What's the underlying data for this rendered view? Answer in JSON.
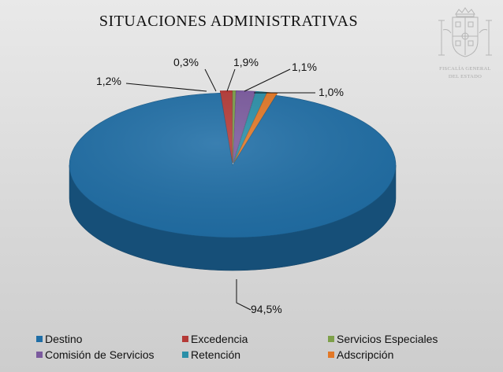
{
  "chart_data": {
    "type": "pie",
    "title": "SITUACIONES ADMINISTRATIVAS",
    "categories": [
      "Destino",
      "Excedencia",
      "Servicios Especiales",
      "Comisión de Servicios",
      "Retención",
      "Adscripción"
    ],
    "values": [
      94.5,
      1.2,
      0.3,
      1.9,
      1.1,
      1.0
    ],
    "value_labels": [
      "94,5%",
      "1,2%",
      "0,3%",
      "1,9%",
      "1,1%",
      "1,0%"
    ],
    "colors": [
      "#1f6ea6",
      "#b43a37",
      "#7ea04a",
      "#7b5a9e",
      "#2a8fa8",
      "#e27827"
    ],
    "legend_position": "bottom",
    "style": "3d"
  },
  "emblem": {
    "caption_line1": "FISCALÍA GENERAL",
    "caption_line2": "DEL ESTADO",
    "icon": "coat-of-arms-icon"
  }
}
